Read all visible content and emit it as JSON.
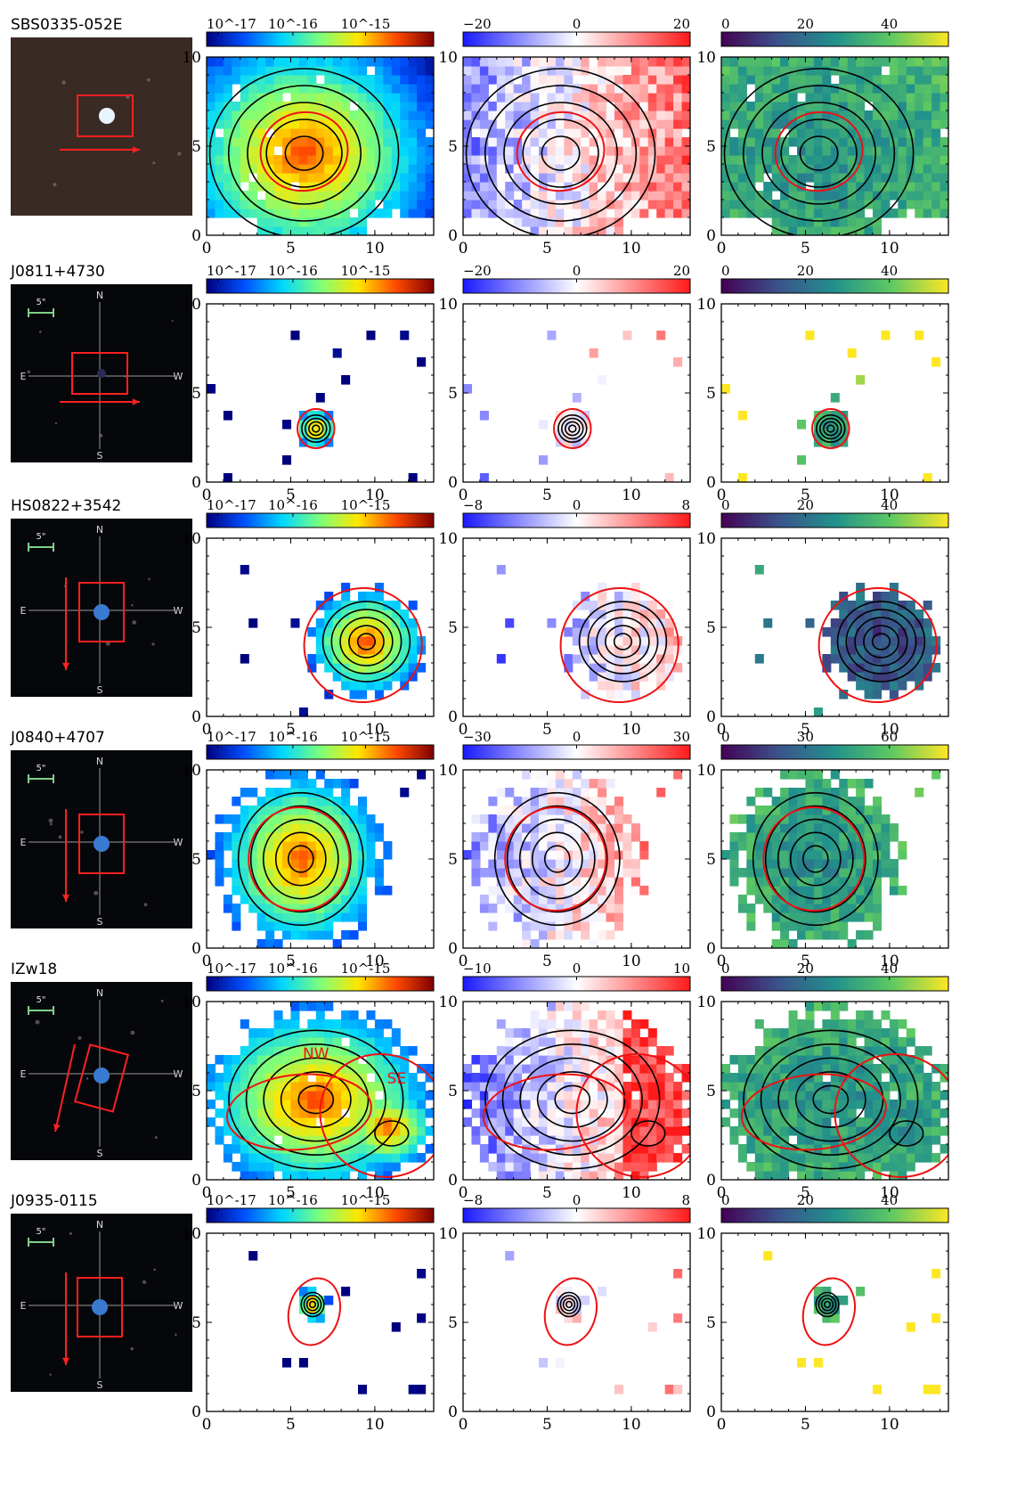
{
  "figure": {
    "colorbars": {
      "flux": {
        "ticks": [
          "10^-17",
          "10^-16",
          "10^-15"
        ],
        "colors": [
          "#00007f",
          "#0050ff",
          "#00d7ff",
          "#7dff7a",
          "#ffe600",
          "#ff4a00",
          "#7f0000"
        ]
      },
      "velocity": {
        "colors": [
          "#1a1aff",
          "#ffffff",
          "#ff1a1a"
        ]
      },
      "dispersion": {
        "colors": [
          "#440154",
          "#3b528b",
          "#21918c",
          "#5ec962",
          "#fde725"
        ]
      }
    },
    "axis_ticks": {
      "x": [
        "0",
        "5",
        "10"
      ],
      "y": [
        "0",
        "5",
        "10"
      ]
    },
    "rows": [
      {
        "name": "SBS0335-052E",
        "vel_ticks": [
          "−20",
          "0",
          "20"
        ],
        "disp_ticks": [
          "0",
          "20",
          "40"
        ],
        "labels": [],
        "compass": null
      },
      {
        "name": "J0811+4730",
        "vel_ticks": [
          "−20",
          "0",
          "20"
        ],
        "disp_ticks": [
          "0",
          "20",
          "40"
        ],
        "labels": [],
        "compass": {
          "N": "N",
          "S": "S",
          "E": "E",
          "W": "W",
          "scale": "5\""
        }
      },
      {
        "name": "HS0822+3542",
        "vel_ticks": [
          "−8",
          "0",
          "8"
        ],
        "disp_ticks": [
          "0",
          "20",
          "40"
        ],
        "labels": [],
        "compass": {
          "N": "N",
          "S": "S",
          "E": "E",
          "W": "W",
          "scale": "5\""
        }
      },
      {
        "name": "J0840+4707",
        "vel_ticks": [
          "−30",
          "0",
          "30"
        ],
        "disp_ticks": [
          "0",
          "30",
          "60"
        ],
        "labels": [],
        "compass": {
          "N": "N",
          "S": "S",
          "E": "E",
          "W": "W",
          "scale": "5\""
        }
      },
      {
        "name": "IZw18",
        "vel_ticks": [
          "−10",
          "0",
          "10"
        ],
        "disp_ticks": [
          "0",
          "20",
          "40"
        ],
        "labels": [
          "NW",
          "SE"
        ],
        "compass": {
          "N": "N",
          "S": "S",
          "E": "E",
          "W": "W",
          "scale": "5\""
        }
      },
      {
        "name": "J0935-0115",
        "vel_ticks": [
          "−8",
          "0",
          "8"
        ],
        "disp_ticks": [
          "0",
          "20",
          "40"
        ],
        "labels": [],
        "compass": {
          "N": "N",
          "S": "S",
          "E": "E",
          "W": "W",
          "scale": "5\""
        }
      }
    ]
  }
}
